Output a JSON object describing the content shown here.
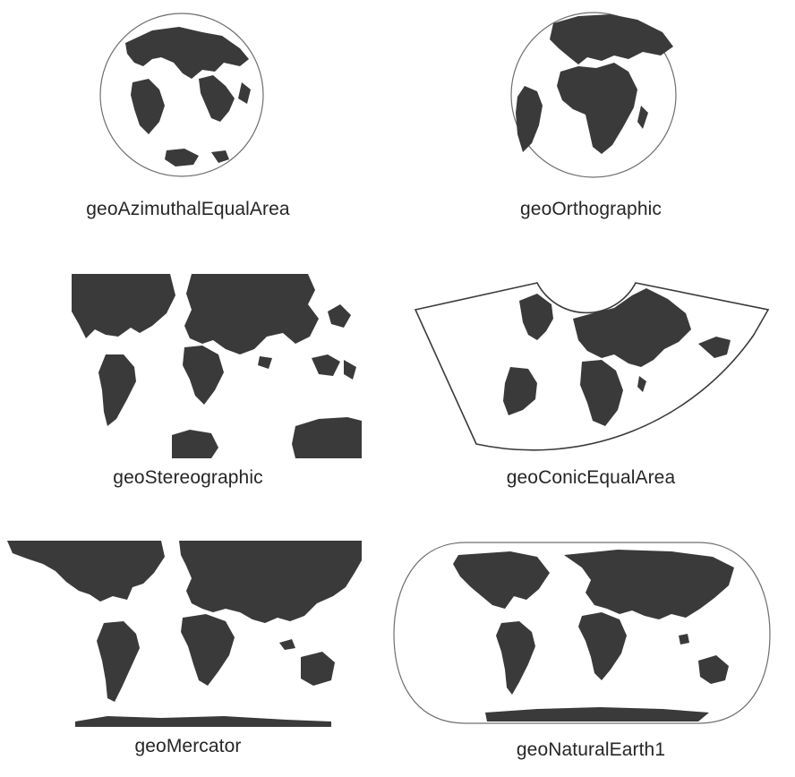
{
  "projections": [
    {
      "id": "azimuthal",
      "label": "geoAzimuthalEqualArea"
    },
    {
      "id": "orthographic",
      "label": "geoOrthographic"
    },
    {
      "id": "stereographic",
      "label": "geoStereographic"
    },
    {
      "id": "conic",
      "label": "geoConicEqualArea"
    },
    {
      "id": "mercator",
      "label": "geoMercator"
    },
    {
      "id": "naturalearth",
      "label": "geoNaturalEarth1"
    }
  ],
  "colors": {
    "land": "#3a3a3a",
    "ocean": "#ffffff",
    "outline": "#6f6f6f",
    "text": "#262626"
  }
}
